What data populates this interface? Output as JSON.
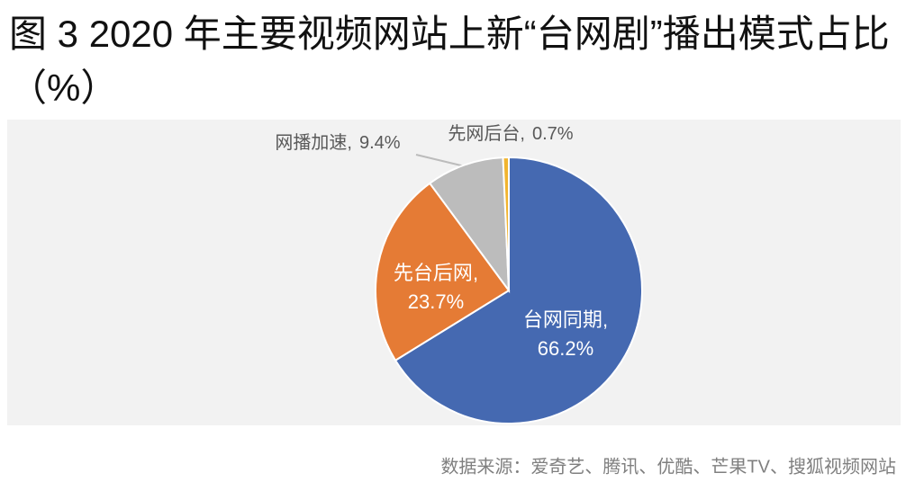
{
  "chart_data": {
    "type": "pie",
    "title": "图 3 2020 年主要视频网站上新“台网剧”播出模式占比（%）",
    "categories": [
      "台网同期",
      "先台后网",
      "网播加速",
      "先网后台"
    ],
    "values": [
      66.2,
      23.7,
      9.4,
      0.7
    ],
    "value_labels": [
      "66.2%",
      "23.7%",
      "9.4%",
      "0.7%"
    ],
    "colors": [
      "#4569b1",
      "#e57b35",
      "#bcbcbc",
      "#f1b42f"
    ],
    "label_separator": ",",
    "source": "数据来源：爱奇艺、腾讯、优酷、芒果TV、搜狐视频网站"
  }
}
